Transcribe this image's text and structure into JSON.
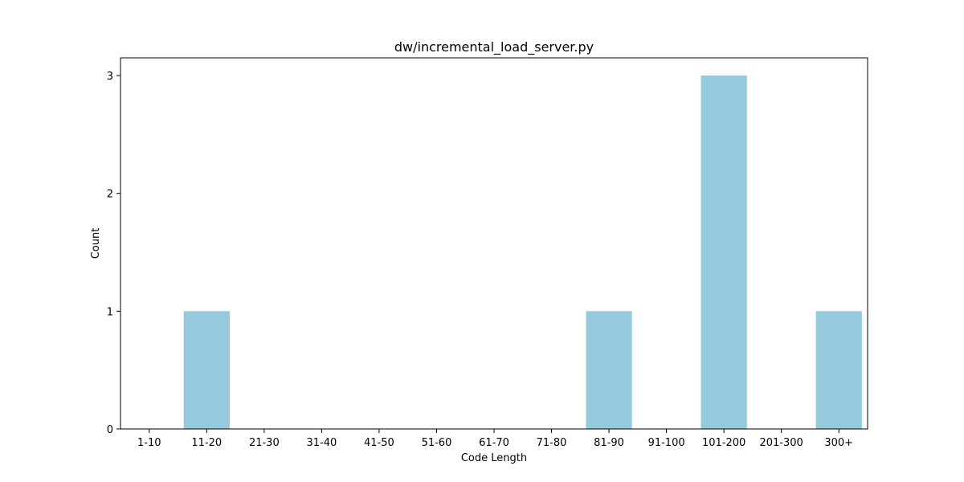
{
  "chart_data": {
    "type": "bar",
    "title": "dw/incremental_load_server.py",
    "xlabel": "Code Length",
    "ylabel": "Count",
    "categories": [
      "1-10",
      "11-20",
      "21-30",
      "31-40",
      "41-50",
      "51-60",
      "61-70",
      "71-80",
      "81-90",
      "91-100",
      "101-200",
      "201-300",
      "300+"
    ],
    "values": [
      0,
      1,
      0,
      0,
      0,
      0,
      0,
      0,
      1,
      0,
      3,
      0,
      1
    ],
    "ylim": [
      0,
      3.15
    ],
    "yticks": [
      0,
      1,
      2,
      3
    ],
    "grid": false,
    "legend": "none",
    "bar_color": "#95c9dc"
  }
}
